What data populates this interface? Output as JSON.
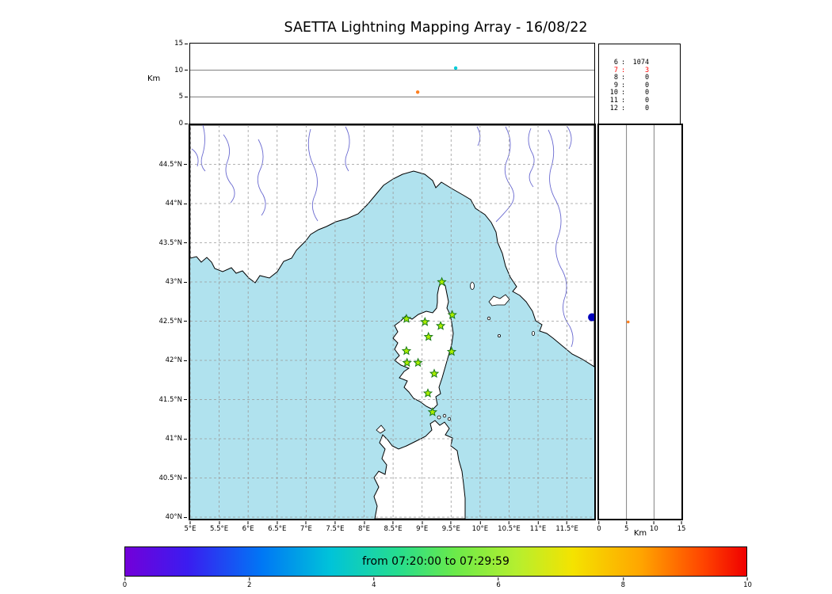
{
  "title": "SAETTA Lightning Mapping Array - 16/08/22",
  "colors": {
    "sea": "#b0e2ee",
    "land": "#ffffff",
    "coast": "#000000",
    "river": "#6a6ad0",
    "grid": "#9a9a9a",
    "panel_grid": "#666666",
    "station_fill": "#aaee00",
    "station_edge": "#1a7a1a"
  },
  "altitude_time_panel": {
    "ylabel": "Km",
    "ylim": [
      0,
      15
    ],
    "yticks": [
      15,
      10,
      5,
      0
    ],
    "grid_km": [
      5,
      10
    ],
    "points": [
      {
        "t_frac": 0.657,
        "alt_km": 10.4,
        "color": "#00ccd8"
      },
      {
        "t_frac": 0.563,
        "alt_km": 5.9,
        "color": "#ff7f1e"
      }
    ]
  },
  "stats_panel": {
    "rows": [
      {
        "station": "6",
        "count": "1074",
        "color": "#000000"
      },
      {
        "station": "7",
        "count": "3",
        "color": "#ff0000"
      },
      {
        "station": "8",
        "count": "0",
        "color": "#000000"
      },
      {
        "station": "9",
        "count": "0",
        "color": "#000000"
      },
      {
        "station": "10",
        "count": "0",
        "color": "#000000"
      },
      {
        "station": "11",
        "count": "0",
        "color": "#000000"
      },
      {
        "station": "12",
        "count": "0",
        "color": "#000000"
      }
    ]
  },
  "map_panel": {
    "lon_range": [
      5.0,
      11.97
    ],
    "lat_range": [
      39.98,
      45.0
    ],
    "lon_tick_values": [
      5,
      5.5,
      6,
      6.5,
      7,
      7.5,
      8,
      8.5,
      9,
      9.5,
      10,
      10.5,
      11,
      11.5
    ],
    "lon_tick_labels": [
      "5°E",
      "5.5°E",
      "6°E",
      "6.5°E",
      "7°E",
      "7.5°E",
      "8°E",
      "8.5°E",
      "9°E",
      "9.5°E",
      "10°E",
      "10.5°E",
      "11°E",
      "11.5°E"
    ],
    "lat_tick_values": [
      44.5,
      44,
      43.5,
      43,
      42.5,
      42,
      41.5,
      41,
      40.5,
      40
    ],
    "lat_tick_labels": [
      "44.5°N",
      "44°N",
      "43.5°N",
      "43°N",
      "42.5°N",
      "42°N",
      "41.5°N",
      "41°N",
      "40.5°N",
      "40°N"
    ],
    "stations_lon_lat": [
      [
        9.34,
        43.0
      ],
      [
        8.73,
        42.53
      ],
      [
        9.05,
        42.49
      ],
      [
        9.32,
        42.44
      ],
      [
        9.52,
        42.58
      ],
      [
        9.11,
        42.3
      ],
      [
        8.73,
        42.12
      ],
      [
        9.51,
        42.11
      ],
      [
        8.74,
        41.97
      ],
      [
        8.93,
        41.97
      ],
      [
        9.21,
        41.83
      ],
      [
        9.1,
        41.58
      ],
      [
        9.18,
        41.34
      ]
    ],
    "event_points": [
      {
        "lon": 11.93,
        "lat": 42.55,
        "color": "#0000bb",
        "r": 5
      }
    ]
  },
  "altitude_lat_panel": {
    "xlabel": "Km",
    "xlim": [
      0,
      15
    ],
    "xticks": [
      0,
      5,
      10,
      15
    ],
    "grid_km": [
      5,
      10
    ],
    "points": [
      {
        "alt_km": 5.3,
        "lat": 42.49,
        "color": "#ff7f1e"
      }
    ]
  },
  "colorbar": {
    "label": "from 07:20:00 to 07:29:59",
    "range": [
      0,
      10
    ],
    "ticks": [
      0,
      2,
      4,
      6,
      8,
      10
    ]
  },
  "chart_data": [
    {
      "type": "scatter",
      "panel": "altitude-vs-time",
      "title": "SAETTA Lightning Mapping Array - 16/08/22",
      "ylabel": "Km",
      "ylim": [
        0,
        15
      ],
      "yticks": [
        0,
        5,
        10,
        15
      ],
      "x_axis": "time within window 07:20:00-07:29:59 (no tick labels shown)",
      "grid": "horizontal lines at 5 and 10 km",
      "points": [
        {
          "t_frac": 0.657,
          "alt_km": 10.4,
          "color": "#00ccd8"
        },
        {
          "t_frac": 0.563,
          "alt_km": 5.9,
          "color": "#ff7f1e"
        }
      ]
    },
    {
      "type": "scatter",
      "panel": "map-longitude-latitude",
      "xlim_deg_E": [
        5.0,
        11.97
      ],
      "ylim_deg_N": [
        39.98,
        45.0
      ],
      "grid": "dashed graticule every 0.5 degree",
      "geography": "Mediterranean: southern France and Italian coast (top), Corsica (center), Elba and Tuscan islands (east of Corsica), northern Sardinia (bottom); sea light blue, land white, rivers purple-blue",
      "station_markers": {
        "symbol": "star",
        "color": "yellow-green with dark green edge",
        "lon_lat": [
          [
            9.34,
            43.0
          ],
          [
            8.73,
            42.53
          ],
          [
            9.05,
            42.49
          ],
          [
            9.32,
            42.44
          ],
          [
            9.52,
            42.58
          ],
          [
            9.11,
            42.3
          ],
          [
            8.73,
            42.12
          ],
          [
            9.51,
            42.11
          ],
          [
            8.74,
            41.97
          ],
          [
            8.93,
            41.97
          ],
          [
            9.21,
            41.83
          ],
          [
            9.1,
            41.58
          ],
          [
            9.18,
            41.34
          ]
        ]
      },
      "points": [
        {
          "lon": 11.93,
          "lat": 42.55,
          "color": "#0000bb",
          "note": "large dark-blue dot clipped at right edge"
        }
      ]
    },
    {
      "type": "scatter",
      "panel": "altitude-vs-latitude",
      "xlabel": "Km",
      "xlim": [
        0,
        15
      ],
      "xticks": [
        0,
        5,
        10,
        15
      ],
      "grid": "vertical lines at 5 and 10 km",
      "points": [
        {
          "alt_km": 5.3,
          "lat": 42.49,
          "color": "#ff7f1e"
        }
      ]
    },
    {
      "type": "table",
      "panel": "station-source-counts",
      "rows": [
        [
          "6",
          1074
        ],
        [
          "7",
          3
        ],
        [
          "8",
          0
        ],
        [
          "9",
          0
        ],
        [
          "10",
          0
        ],
        [
          "11",
          0
        ],
        [
          "12",
          0
        ]
      ],
      "note": "row for station 7 rendered in red"
    },
    {
      "type": "colorbar",
      "label": "from 07:20:00 to 07:29:59",
      "colormap": "rainbow (violet to red)",
      "range": [
        0,
        10
      ],
      "ticks": [
        0,
        2,
        4,
        6,
        8,
        10
      ]
    }
  ]
}
